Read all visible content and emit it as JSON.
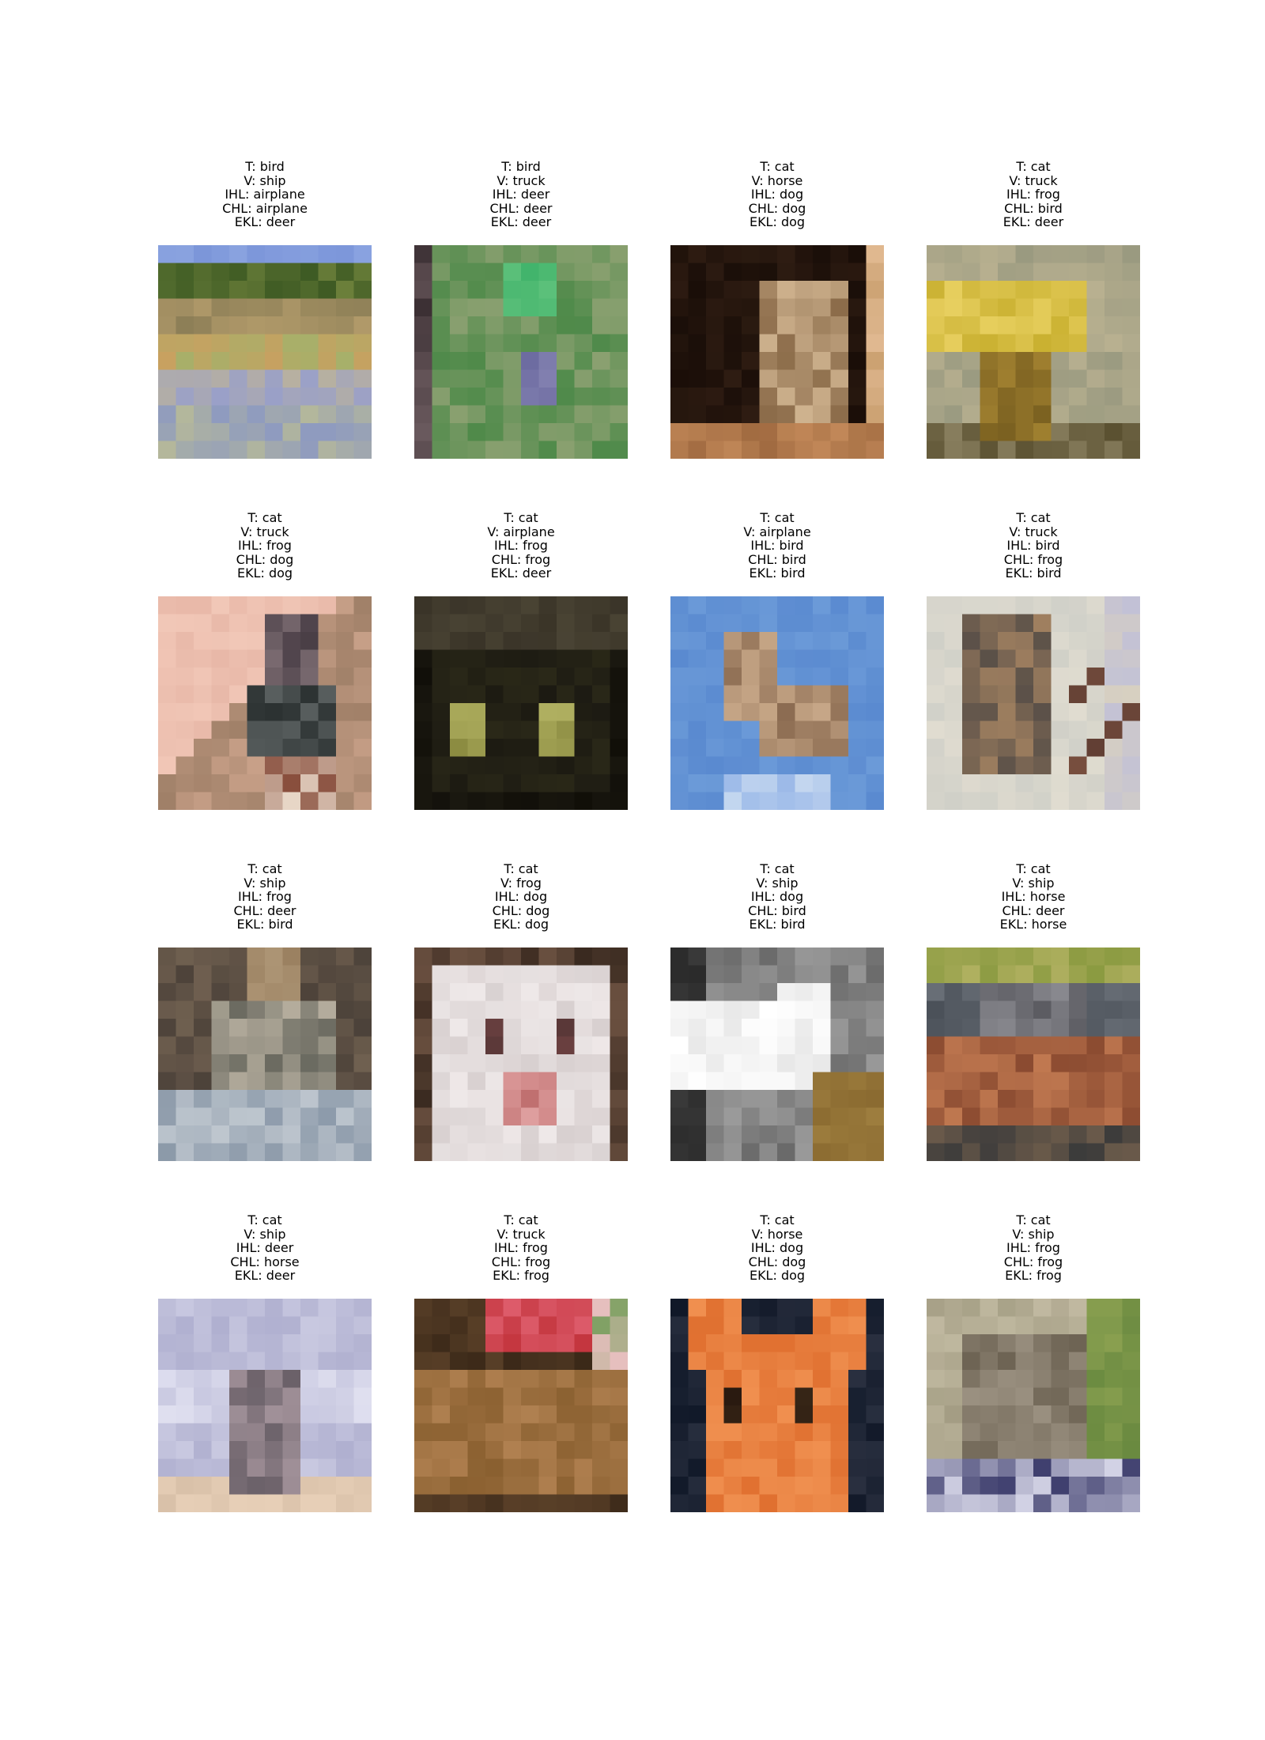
{
  "grid": [
    {
      "t": "T: bird",
      "v": "V: ship",
      "ihl": "IHL: airplane",
      "chl": "CHL: airplane",
      "ekl": "EKL: deer",
      "image": "meadow-landscape"
    },
    {
      "t": "T: bird",
      "v": "V: truck",
      "ihl": "IHL: deer",
      "chl": "CHL: deer",
      "ekl": "EKL: deer",
      "image": "bird-in-green-foliage"
    },
    {
      "t": "T: cat",
      "v": "V: horse",
      "ihl": "IHL: dog",
      "chl": "CHL: dog",
      "ekl": "EKL: dog",
      "image": "cat-in-dark-doorway"
    },
    {
      "t": "T: cat",
      "v": "V: truck",
      "ihl": "IHL: frog",
      "chl": "CHL: bird",
      "ekl": "EKL: deer",
      "image": "cat-on-yellow-sign"
    },
    {
      "t": "T: cat",
      "v": "V: truck",
      "ihl": "IHL: frog",
      "chl": "CHL: dog",
      "ekl": "EKL: dog",
      "image": "cat-drinking-from-cup"
    },
    {
      "t": "T: cat",
      "v": "V: airplane",
      "ihl": "IHL: frog",
      "chl": "CHL: frog",
      "ekl": "EKL: deer",
      "image": "black-cat-in-dark"
    },
    {
      "t": "T: cat",
      "v": "V: airplane",
      "ihl": "IHL: bird",
      "chl": "CHL: bird",
      "ekl": "EKL: bird",
      "image": "flying-bird-blue-sky"
    },
    {
      "t": "T: cat",
      "v": "V: truck",
      "ihl": "IHL: bird",
      "chl": "CHL: frog",
      "ekl": "EKL: bird",
      "image": "bird-on-branch"
    },
    {
      "t": "T: cat",
      "v": "V: ship",
      "ihl": "IHL: frog",
      "chl": "CHL: deer",
      "ekl": "EKL: bird",
      "image": "tabby-cat-on-rocks"
    },
    {
      "t": "T: cat",
      "v": "V: frog",
      "ihl": "IHL: dog",
      "chl": "CHL: dog",
      "ekl": "EKL: dog",
      "image": "white-cat-face-closeup"
    },
    {
      "t": "T: cat",
      "v": "V: ship",
      "ihl": "IHL: dog",
      "chl": "CHL: bird",
      "ekl": "EKL: bird",
      "image": "white-cat-paw"
    },
    {
      "t": "T: cat",
      "v": "V: ship",
      "ihl": "IHL: horse",
      "chl": "CHL: deer",
      "ekl": "EKL: horse",
      "image": "cat-on-wooden-bench"
    },
    {
      "t": "T: cat",
      "v": "V: ship",
      "ihl": "IHL: deer",
      "chl": "CHL: horse",
      "ekl": "EKL: deer",
      "image": "kitten-sitting-light-background"
    },
    {
      "t": "T: cat",
      "v": "V: truck",
      "ihl": "IHL: frog",
      "chl": "CHL: frog",
      "ekl": "EKL: frog",
      "image": "brown-cat-with-red-background"
    },
    {
      "t": "T: cat",
      "v": "V: horse",
      "ihl": "IHL: dog",
      "chl": "CHL: dog",
      "ekl": "EKL: dog",
      "image": "orange-kitten-face"
    },
    {
      "t": "T: cat",
      "v": "V: ship",
      "ihl": "IHL: frog",
      "chl": "CHL: frog",
      "ekl": "EKL: frog",
      "image": "cat-lying-on-grass"
    }
  ]
}
